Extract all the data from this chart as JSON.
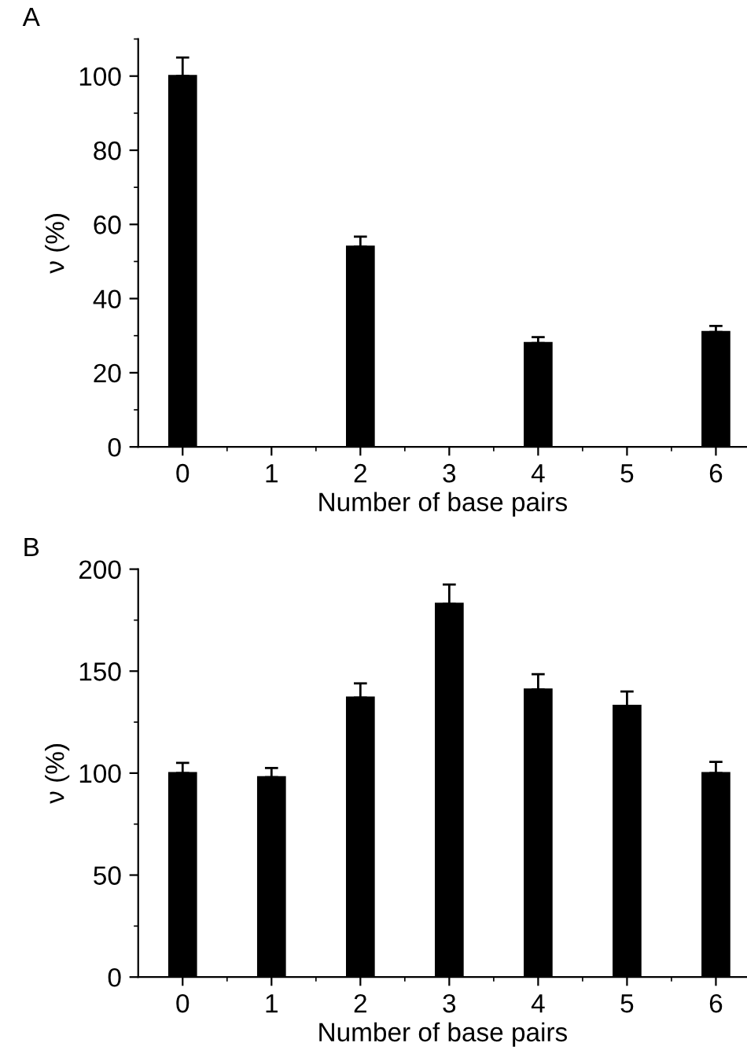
{
  "chart_data": [
    {
      "type": "bar",
      "title": "A",
      "xlabel": "Number of base pairs",
      "ylabel": "ν (%)",
      "categories": [
        "0",
        "1",
        "2",
        "3",
        "4",
        "5",
        "6"
      ],
      "color": "#000000",
      "values": [
        100,
        null,
        54,
        null,
        28,
        null,
        31
      ],
      "errors": [
        [
          100,
          105
        ],
        null,
        [
          54,
          56.7
        ],
        null,
        [
          28,
          29.6
        ],
        null,
        [
          31,
          32.6
        ]
      ],
      "ylim": [
        0,
        110
      ],
      "yticks": [
        0,
        20,
        40,
        60,
        80,
        100
      ],
      "grid": false,
      "legend": false
    },
    {
      "type": "bar",
      "title": "B",
      "xlabel": "Number of base pairs",
      "ylabel": "ν (%)",
      "categories": [
        "0",
        "1",
        "2",
        "3",
        "4",
        "5",
        "6"
      ],
      "color": "#000000",
      "values": [
        100,
        98,
        137,
        183,
        141,
        133,
        100
      ],
      "errors": [
        [
          100,
          105
        ],
        [
          98,
          102.5
        ],
        [
          137,
          144
        ],
        [
          183,
          192.5
        ],
        [
          141,
          148.5
        ],
        [
          133,
          140
        ],
        [
          100,
          105.5
        ]
      ],
      "ylim": [
        0,
        200
      ],
      "yticks": [
        0,
        50,
        100,
        150,
        200
      ],
      "grid": false,
      "legend": false
    }
  ]
}
